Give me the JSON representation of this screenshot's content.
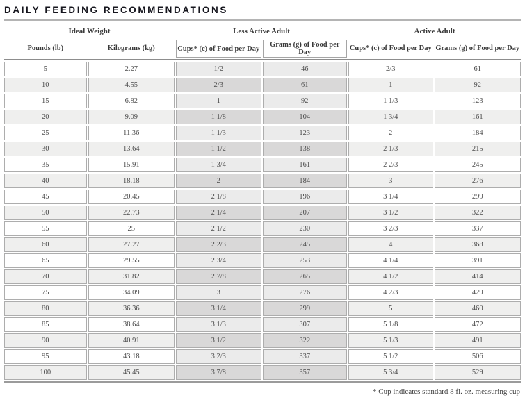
{
  "title": "DAILY FEEDING RECOMMENDATIONS",
  "table": {
    "groups": {
      "ideal_weight": "Ideal Weight",
      "less_active": "Less Active Adult",
      "active": "Active Adult"
    },
    "columns": [
      "Pounds (lb)",
      "Kilograms (kg)",
      "Cups* (c) of Food per Day",
      "Grams (g) of Food per Day",
      "Cups* (c) of Food per Day",
      "Grams (g) of Food per Day"
    ],
    "rows": [
      [
        "5",
        "2.27",
        "1/2",
        "46",
        "2/3",
        "61"
      ],
      [
        "10",
        "4.55",
        "2/3",
        "61",
        "1",
        "92"
      ],
      [
        "15",
        "6.82",
        "1",
        "92",
        "1 1/3",
        "123"
      ],
      [
        "20",
        "9.09",
        "1 1/8",
        "104",
        "1 3/4",
        "161"
      ],
      [
        "25",
        "11.36",
        "1 1/3",
        "123",
        "2",
        "184"
      ],
      [
        "30",
        "13.64",
        "1 1/2",
        "138",
        "2 1/3",
        "215"
      ],
      [
        "35",
        "15.91",
        "1 3/4",
        "161",
        "2 2/3",
        "245"
      ],
      [
        "40",
        "18.18",
        "2",
        "184",
        "3",
        "276"
      ],
      [
        "45",
        "20.45",
        "2 1/8",
        "196",
        "3 1/4",
        "299"
      ],
      [
        "50",
        "22.73",
        "2 1/4",
        "207",
        "3 1/2",
        "322"
      ],
      [
        "55",
        "25",
        "2 1/2",
        "230",
        "3 2/3",
        "337"
      ],
      [
        "60",
        "27.27",
        "2 2/3",
        "245",
        "4",
        "368"
      ],
      [
        "65",
        "29.55",
        "2 3/4",
        "253",
        "4 1/4",
        "391"
      ],
      [
        "70",
        "31.82",
        "2 7/8",
        "265",
        "4 1/2",
        "414"
      ],
      [
        "75",
        "34.09",
        "3",
        "276",
        "4 2/3",
        "429"
      ],
      [
        "80",
        "36.36",
        "3 1/4",
        "299",
        "5",
        "460"
      ],
      [
        "85",
        "38.64",
        "3 1/3",
        "307",
        "5 1/8",
        "472"
      ],
      [
        "90",
        "40.91",
        "3 1/2",
        "322",
        "5 1/3",
        "491"
      ],
      [
        "95",
        "43.18",
        "3 2/3",
        "337",
        "5 1/2",
        "506"
      ],
      [
        "100",
        "45.45",
        "3 7/8",
        "357",
        "5 3/4",
        "529"
      ]
    ],
    "footnote": "* Cup indicates standard 8 fl. oz. measuring cup"
  },
  "chart_data": {
    "type": "table",
    "title": "DAILY FEEDING RECOMMENDATIONS",
    "column_groups": [
      "Ideal Weight",
      "Less Active Adult",
      "Active Adult"
    ],
    "columns": [
      "Pounds (lb)",
      "Kilograms (kg)",
      "Less Active Cups* (c) of Food per Day",
      "Less Active Grams (g) of Food per Day",
      "Active Cups* (c) of Food per Day",
      "Active Grams (g) of Food per Day"
    ],
    "rows": [
      [
        "5",
        "2.27",
        "1/2",
        "46",
        "2/3",
        "61"
      ],
      [
        "10",
        "4.55",
        "2/3",
        "61",
        "1",
        "92"
      ],
      [
        "15",
        "6.82",
        "1",
        "92",
        "1 1/3",
        "123"
      ],
      [
        "20",
        "9.09",
        "1 1/8",
        "104",
        "1 3/4",
        "161"
      ],
      [
        "25",
        "11.36",
        "1 1/3",
        "123",
        "2",
        "184"
      ],
      [
        "30",
        "13.64",
        "1 1/2",
        "138",
        "2 1/3",
        "215"
      ],
      [
        "35",
        "15.91",
        "1 3/4",
        "161",
        "2 2/3",
        "245"
      ],
      [
        "40",
        "18.18",
        "2",
        "184",
        "3",
        "276"
      ],
      [
        "45",
        "20.45",
        "2 1/8",
        "196",
        "3 1/4",
        "299"
      ],
      [
        "50",
        "22.73",
        "2 1/4",
        "207",
        "3 1/2",
        "322"
      ],
      [
        "55",
        "25",
        "2 1/2",
        "230",
        "3 2/3",
        "337"
      ],
      [
        "60",
        "27.27",
        "2 2/3",
        "245",
        "4",
        "368"
      ],
      [
        "65",
        "29.55",
        "2 3/4",
        "253",
        "4 1/4",
        "391"
      ],
      [
        "70",
        "31.82",
        "2 7/8",
        "265",
        "4 1/2",
        "414"
      ],
      [
        "75",
        "34.09",
        "3",
        "276",
        "4 2/3",
        "429"
      ],
      [
        "80",
        "36.36",
        "3 1/4",
        "299",
        "5",
        "460"
      ],
      [
        "85",
        "38.64",
        "3 1/3",
        "307",
        "5 1/8",
        "472"
      ],
      [
        "90",
        "40.91",
        "3 1/2",
        "322",
        "5 1/3",
        "491"
      ],
      [
        "95",
        "43.18",
        "3 2/3",
        "337",
        "5 1/2",
        "506"
      ],
      [
        "100",
        "45.45",
        "3 7/8",
        "357",
        "5 3/4",
        "529"
      ]
    ]
  }
}
